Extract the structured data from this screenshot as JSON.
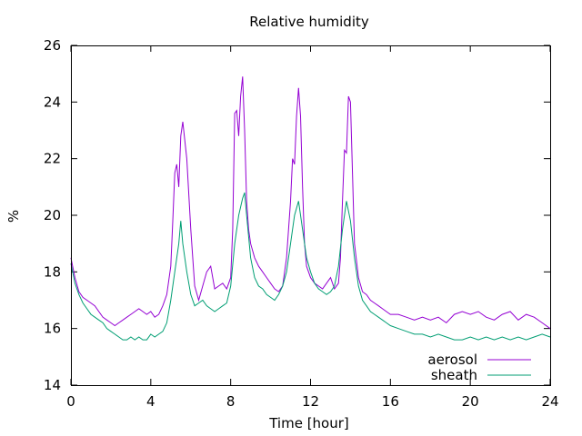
{
  "chart_data": {
    "type": "line",
    "title": "Relative humidity",
    "xlabel": "Time [hour]",
    "ylabel": "%",
    "xlim": [
      0,
      24
    ],
    "ylim": [
      14,
      26
    ],
    "xticks": [
      0,
      4,
      8,
      12,
      16,
      20,
      24
    ],
    "yticks": [
      14,
      16,
      18,
      20,
      22,
      24,
      26
    ],
    "grid": false,
    "legend_position": "bottom-right",
    "series": [
      {
        "name": "aerosol",
        "color": "#9400d3",
        "x": [
          0,
          0.2,
          0.4,
          0.6,
          0.8,
          1,
          1.2,
          1.4,
          1.6,
          1.8,
          2,
          2.2,
          2.4,
          2.6,
          2.8,
          3,
          3.2,
          3.4,
          3.6,
          3.8,
          4,
          4.2,
          4.4,
          4.6,
          4.8,
          5,
          5.1,
          5.2,
          5.3,
          5.4,
          5.5,
          5.6,
          5.8,
          6,
          6.2,
          6.4,
          6.6,
          6.8,
          7,
          7.2,
          7.4,
          7.6,
          7.8,
          8,
          8.1,
          8.2,
          8.3,
          8.4,
          8.5,
          8.6,
          8.7,
          8.8,
          8.9,
          9,
          9.2,
          9.4,
          9.6,
          9.8,
          10,
          10.2,
          10.4,
          10.6,
          10.8,
          11,
          11.1,
          11.2,
          11.3,
          11.4,
          11.5,
          11.6,
          11.7,
          11.8,
          12,
          12.2,
          12.4,
          12.6,
          12.8,
          13,
          13.2,
          13.4,
          13.5,
          13.6,
          13.7,
          13.8,
          13.9,
          14,
          14.1,
          14.2,
          14.4,
          14.6,
          14.8,
          15,
          15.2,
          15.4,
          15.6,
          15.8,
          16,
          16.4,
          16.8,
          17.2,
          17.6,
          18,
          18.4,
          18.8,
          19.2,
          19.6,
          20,
          20.4,
          20.8,
          21.2,
          21.6,
          22,
          22.4,
          22.8,
          23.2,
          23.6,
          24
        ],
        "y": [
          18.5,
          17.8,
          17.3,
          17.1,
          17.0,
          16.9,
          16.8,
          16.6,
          16.4,
          16.3,
          16.2,
          16.1,
          16.2,
          16.3,
          16.4,
          16.5,
          16.6,
          16.7,
          16.6,
          16.5,
          16.6,
          16.4,
          16.5,
          16.8,
          17.2,
          18.2,
          19.8,
          21.5,
          21.8,
          21.0,
          22.8,
          23.3,
          22.0,
          19.5,
          17.5,
          17.0,
          17.5,
          18.0,
          18.2,
          17.4,
          17.5,
          17.6,
          17.4,
          17.8,
          19.5,
          23.6,
          23.7,
          22.8,
          24.2,
          24.9,
          23.0,
          20.5,
          19.5,
          19.0,
          18.5,
          18.2,
          18.0,
          17.8,
          17.6,
          17.4,
          17.3,
          17.5,
          18.5,
          20.5,
          22.0,
          21.8,
          23.5,
          24.5,
          23.5,
          21.0,
          19.0,
          18.2,
          17.8,
          17.6,
          17.5,
          17.4,
          17.6,
          17.8,
          17.4,
          17.6,
          18.5,
          20.5,
          22.3,
          22.2,
          24.2,
          24.0,
          21.5,
          19.0,
          17.8,
          17.3,
          17.2,
          17.0,
          16.9,
          16.8,
          16.7,
          16.6,
          16.5,
          16.5,
          16.4,
          16.3,
          16.4,
          16.3,
          16.4,
          16.2,
          16.5,
          16.6,
          16.5,
          16.6,
          16.4,
          16.3,
          16.5,
          16.6,
          16.3,
          16.5,
          16.4,
          16.2,
          16.0
        ]
      },
      {
        "name": "sheath",
        "color": "#009e73",
        "x": [
          0,
          0.2,
          0.4,
          0.6,
          0.8,
          1,
          1.2,
          1.4,
          1.6,
          1.8,
          2,
          2.2,
          2.4,
          2.6,
          2.8,
          3,
          3.2,
          3.4,
          3.6,
          3.8,
          4,
          4.2,
          4.4,
          4.6,
          4.8,
          5,
          5.2,
          5.4,
          5.5,
          5.6,
          5.8,
          6,
          6.2,
          6.4,
          6.6,
          6.8,
          7,
          7.2,
          7.4,
          7.6,
          7.8,
          8,
          8.2,
          8.4,
          8.6,
          8.7,
          8.8,
          9,
          9.2,
          9.4,
          9.6,
          9.8,
          10,
          10.2,
          10.4,
          10.6,
          10.8,
          11,
          11.2,
          11.4,
          11.6,
          11.8,
          12,
          12.2,
          12.4,
          12.6,
          12.8,
          13,
          13.2,
          13.4,
          13.6,
          13.8,
          14,
          14.2,
          14.4,
          14.6,
          14.8,
          15,
          15.2,
          15.4,
          15.6,
          15.8,
          16,
          16.4,
          16.8,
          17.2,
          17.6,
          18,
          18.4,
          18.8,
          19.2,
          19.6,
          20,
          20.4,
          20.8,
          21.2,
          21.6,
          22,
          22.4,
          22.8,
          23.2,
          23.6,
          24
        ],
        "y": [
          18.3,
          17.6,
          17.2,
          16.9,
          16.7,
          16.5,
          16.4,
          16.3,
          16.2,
          16.0,
          15.9,
          15.8,
          15.7,
          15.6,
          15.6,
          15.7,
          15.6,
          15.7,
          15.6,
          15.6,
          15.8,
          15.7,
          15.8,
          15.9,
          16.2,
          17.0,
          18.0,
          19.0,
          19.8,
          19.0,
          18.0,
          17.2,
          16.8,
          16.9,
          17.0,
          16.8,
          16.7,
          16.6,
          16.7,
          16.8,
          16.9,
          17.5,
          19.0,
          20.0,
          20.6,
          20.8,
          20.0,
          18.5,
          17.8,
          17.5,
          17.4,
          17.2,
          17.1,
          17.0,
          17.2,
          17.5,
          18.0,
          19.0,
          20.0,
          20.5,
          19.5,
          18.5,
          18.0,
          17.6,
          17.4,
          17.3,
          17.2,
          17.3,
          17.5,
          18.2,
          19.5,
          20.5,
          19.8,
          18.5,
          17.5,
          17.0,
          16.8,
          16.6,
          16.5,
          16.4,
          16.3,
          16.2,
          16.1,
          16.0,
          15.9,
          15.8,
          15.8,
          15.7,
          15.8,
          15.7,
          15.6,
          15.6,
          15.7,
          15.6,
          15.7,
          15.6,
          15.7,
          15.6,
          15.7,
          15.6,
          15.7,
          15.8,
          15.7
        ]
      }
    ]
  }
}
